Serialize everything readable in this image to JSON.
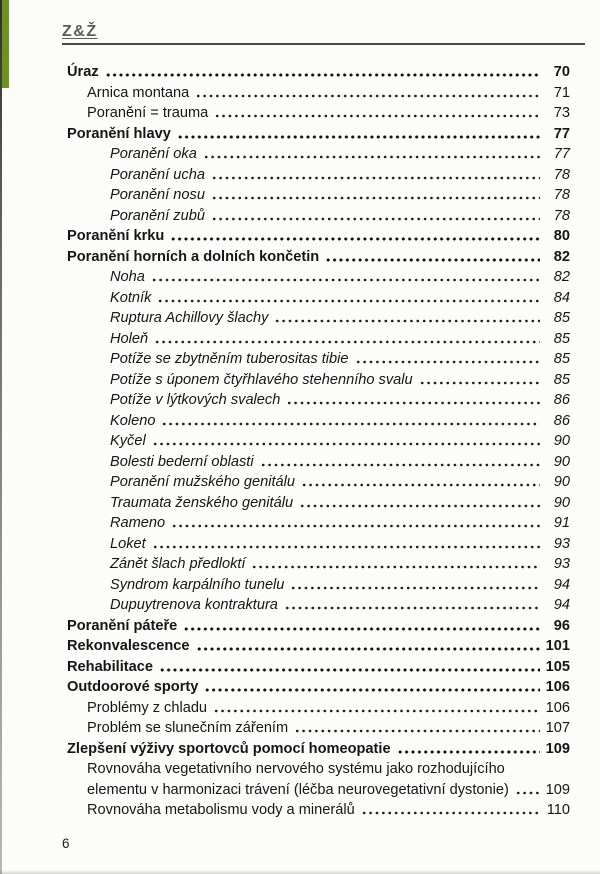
{
  "page": {
    "logo_text": "Z&Ž",
    "footer_page_number": "6",
    "accent_green": "#6c9129",
    "rule_color": "#4a4a48"
  },
  "toc": {
    "entries": [
      {
        "label": "Úraz",
        "page": "70",
        "level": 1,
        "style": "bold"
      },
      {
        "label": "Arnica montana",
        "page": "71",
        "level": 2,
        "style": "regular"
      },
      {
        "label": "Poranění = trauma",
        "page": "73",
        "level": 2,
        "style": "regular"
      },
      {
        "label": "Poranění hlavy",
        "page": "77",
        "level": 1,
        "style": "bold"
      },
      {
        "label": "Poranění oka",
        "page": "77",
        "level": 3,
        "style": "italic"
      },
      {
        "label": "Poranění ucha",
        "page": "78",
        "level": 3,
        "style": "italic"
      },
      {
        "label": "Poranění nosu",
        "page": "78",
        "level": 3,
        "style": "italic"
      },
      {
        "label": "Poranění zubů",
        "page": "78",
        "level": 3,
        "style": "italic"
      },
      {
        "label": "Poranění krku",
        "page": "80",
        "level": 1,
        "style": "bold"
      },
      {
        "label": "Poranění horních a dolních končetin",
        "page": "82",
        "level": 1,
        "style": "bold"
      },
      {
        "label": "Noha",
        "page": "82",
        "level": 3,
        "style": "italic"
      },
      {
        "label": "Kotník",
        "page": "84",
        "level": 3,
        "style": "italic"
      },
      {
        "label": "Ruptura Achillovy šlachy",
        "page": "85",
        "level": 3,
        "style": "italic"
      },
      {
        "label": "Holeň",
        "page": "85",
        "level": 3,
        "style": "italic"
      },
      {
        "label": "Potíže se zbytněním tuberositas tibie",
        "page": "85",
        "level": 3,
        "style": "italic"
      },
      {
        "label": "Potíže s úponem čtyřhlavého stehenního svalu",
        "page": "85",
        "level": 3,
        "style": "italic"
      },
      {
        "label": "Potíže v lýtkových svalech",
        "page": "86",
        "level": 3,
        "style": "italic"
      },
      {
        "label": "Koleno",
        "page": "86",
        "level": 3,
        "style": "italic"
      },
      {
        "label": "Kyčel",
        "page": "90",
        "level": 3,
        "style": "italic"
      },
      {
        "label": "Bolesti bederní oblasti",
        "page": "90",
        "level": 3,
        "style": "italic"
      },
      {
        "label": "Poranění mužského genitálu",
        "page": "90",
        "level": 3,
        "style": "italic"
      },
      {
        "label": "Traumata ženského genitálu",
        "page": "90",
        "level": 3,
        "style": "italic"
      },
      {
        "label": "Rameno",
        "page": "91",
        "level": 3,
        "style": "italic"
      },
      {
        "label": "Loket",
        "page": "93",
        "level": 3,
        "style": "italic"
      },
      {
        "label": "Zánět šlach předloktí",
        "page": "93",
        "level": 3,
        "style": "italic"
      },
      {
        "label": "Syndrom karpálního tunelu",
        "page": "94",
        "level": 3,
        "style": "italic"
      },
      {
        "label": "Dupuytrenova kontraktura",
        "page": "94",
        "level": 3,
        "style": "italic"
      },
      {
        "label": "Poranění páteře",
        "page": "96",
        "level": 1,
        "style": "bold"
      },
      {
        "label": "Rekonvalescence",
        "page": "101",
        "level": 1,
        "style": "bold"
      },
      {
        "label": "Rehabilitace",
        "page": "105",
        "level": 1,
        "style": "bold"
      },
      {
        "label": "Outdoorové sporty",
        "page": "106",
        "level": 1,
        "style": "bold"
      },
      {
        "label": "Problémy z chladu",
        "page": "106",
        "level": 2,
        "style": "regular"
      },
      {
        "label": "Problém se slunečním zářením",
        "page": "107",
        "level": 2,
        "style": "regular"
      },
      {
        "label": "Zlepšení výživy sportovců pomocí homeopatie",
        "page": "109",
        "level": 1,
        "style": "bold"
      },
      {
        "label": "Rovnováha vegetativního nervového systému jako rozhodujícího",
        "label_line2": "elementu v harmonizaci trávení (léčba neurovegetativní dystonie)",
        "page": "109",
        "level": 2,
        "style": "regular"
      },
      {
        "label": "Rovnováha metabolismu vody a minerálů",
        "page": "110",
        "level": 2,
        "style": "regular"
      }
    ]
  }
}
